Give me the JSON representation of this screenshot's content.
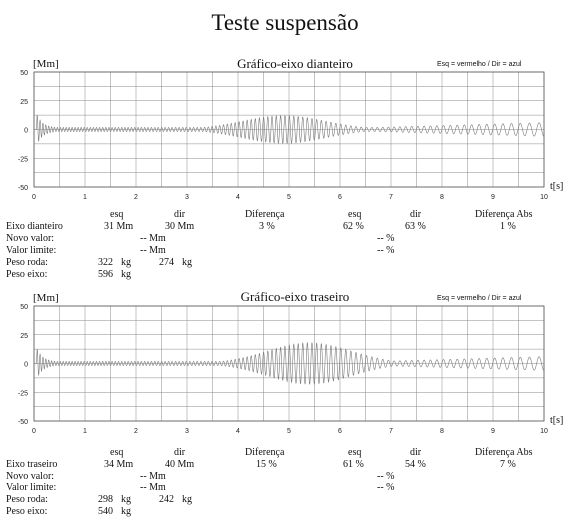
{
  "page_title": "Teste suspensão",
  "chart_data": [
    {
      "type": "line",
      "title": "Gráfico-eixo dianteiro",
      "ylabel": "[Mm]",
      "xlabel": "t[s]",
      "legend_note": "Esq = vermelho / Dir = azul",
      "xlim": [
        0,
        10
      ],
      "ylim": [
        -50,
        50
      ],
      "x_ticks": [
        0,
        1,
        2,
        3,
        4,
        5,
        6,
        7,
        8,
        9,
        10
      ],
      "y_ticks": [
        50,
        25,
        0,
        -25,
        -50
      ],
      "grid": true,
      "series_color": "#7a7a7a",
      "waveform": {
        "peak_amplitude": 12,
        "peak_time": 4.9,
        "start_burst_amplitude": 11
      }
    },
    {
      "type": "line",
      "title": "Gráfico-eixo traseiro",
      "ylabel": "[Mm]",
      "xlabel": "t[s]",
      "legend_note": "Esq = vermelho / Dir = azul",
      "xlim": [
        0,
        10
      ],
      "ylim": [
        -50,
        50
      ],
      "x_ticks": [
        0,
        1,
        2,
        3,
        4,
        5,
        6,
        7,
        8,
        9,
        10
      ],
      "y_ticks": [
        50,
        25,
        0,
        -25,
        -50
      ],
      "grid": true,
      "series_color": "#7a7a7a",
      "waveform": {
        "peak_amplitude": 18,
        "peak_time": 5.4,
        "start_burst_amplitude": 11
      }
    }
  ],
  "front_table": {
    "headers": {
      "esq": "esq",
      "dir": "dir",
      "diferenca": "Diferença",
      "esq2": "esq",
      "dir2": "dir",
      "diferenca_abs": "Diferença Abs"
    },
    "axle_label": "Eixo dianteiro",
    "esq_value": "31 Mm",
    "dir_value": "30 Mm",
    "diferenca_value": "3 %",
    "esq_pct": "62 %",
    "dir_pct": "63 %",
    "diferenca_abs_value": "1 %",
    "novo_valor_label": "Novo valor:",
    "novo_valor_value": "-- Mm",
    "novo_valor_pct": "-- %",
    "valor_limite_label": "Valor limite:",
    "valor_limite_value": "-- Mm",
    "valor_limite_pct": "-- %",
    "peso_roda_label": "Peso roda:",
    "peso_roda_esq": "322",
    "peso_roda_esq_unit": "kg",
    "peso_roda_dir": "274",
    "peso_roda_dir_unit": "kg",
    "peso_eixo_label": "Peso eixo:",
    "peso_eixo_value": "596",
    "peso_eixo_unit": "kg"
  },
  "rear_table": {
    "headers": {
      "esq": "esq",
      "dir": "dir",
      "diferenca": "Diferença",
      "esq2": "esq",
      "dir2": "dir",
      "diferenca_abs": "Diferença Abs"
    },
    "axle_label": "Eixo traseiro",
    "esq_value": "34 Mm",
    "dir_value": "40 Mm",
    "diferenca_value": "15 %",
    "esq_pct": "61 %",
    "dir_pct": "54 %",
    "diferenca_abs_value": "7 %",
    "novo_valor_label": "Novo valor:",
    "novo_valor_value": "-- Mm",
    "novo_valor_pct": "-- %",
    "valor_limite_label": "Valor limite:",
    "valor_limite_value": "-- Mm",
    "valor_limite_pct": "-- %",
    "peso_roda_label": "Peso roda:",
    "peso_roda_esq": "298",
    "peso_roda_esq_unit": "kg",
    "peso_roda_dir": "242",
    "peso_roda_dir_unit": "kg",
    "peso_eixo_label": "Peso eixo:",
    "peso_eixo_value": "540",
    "peso_eixo_unit": "kg"
  }
}
